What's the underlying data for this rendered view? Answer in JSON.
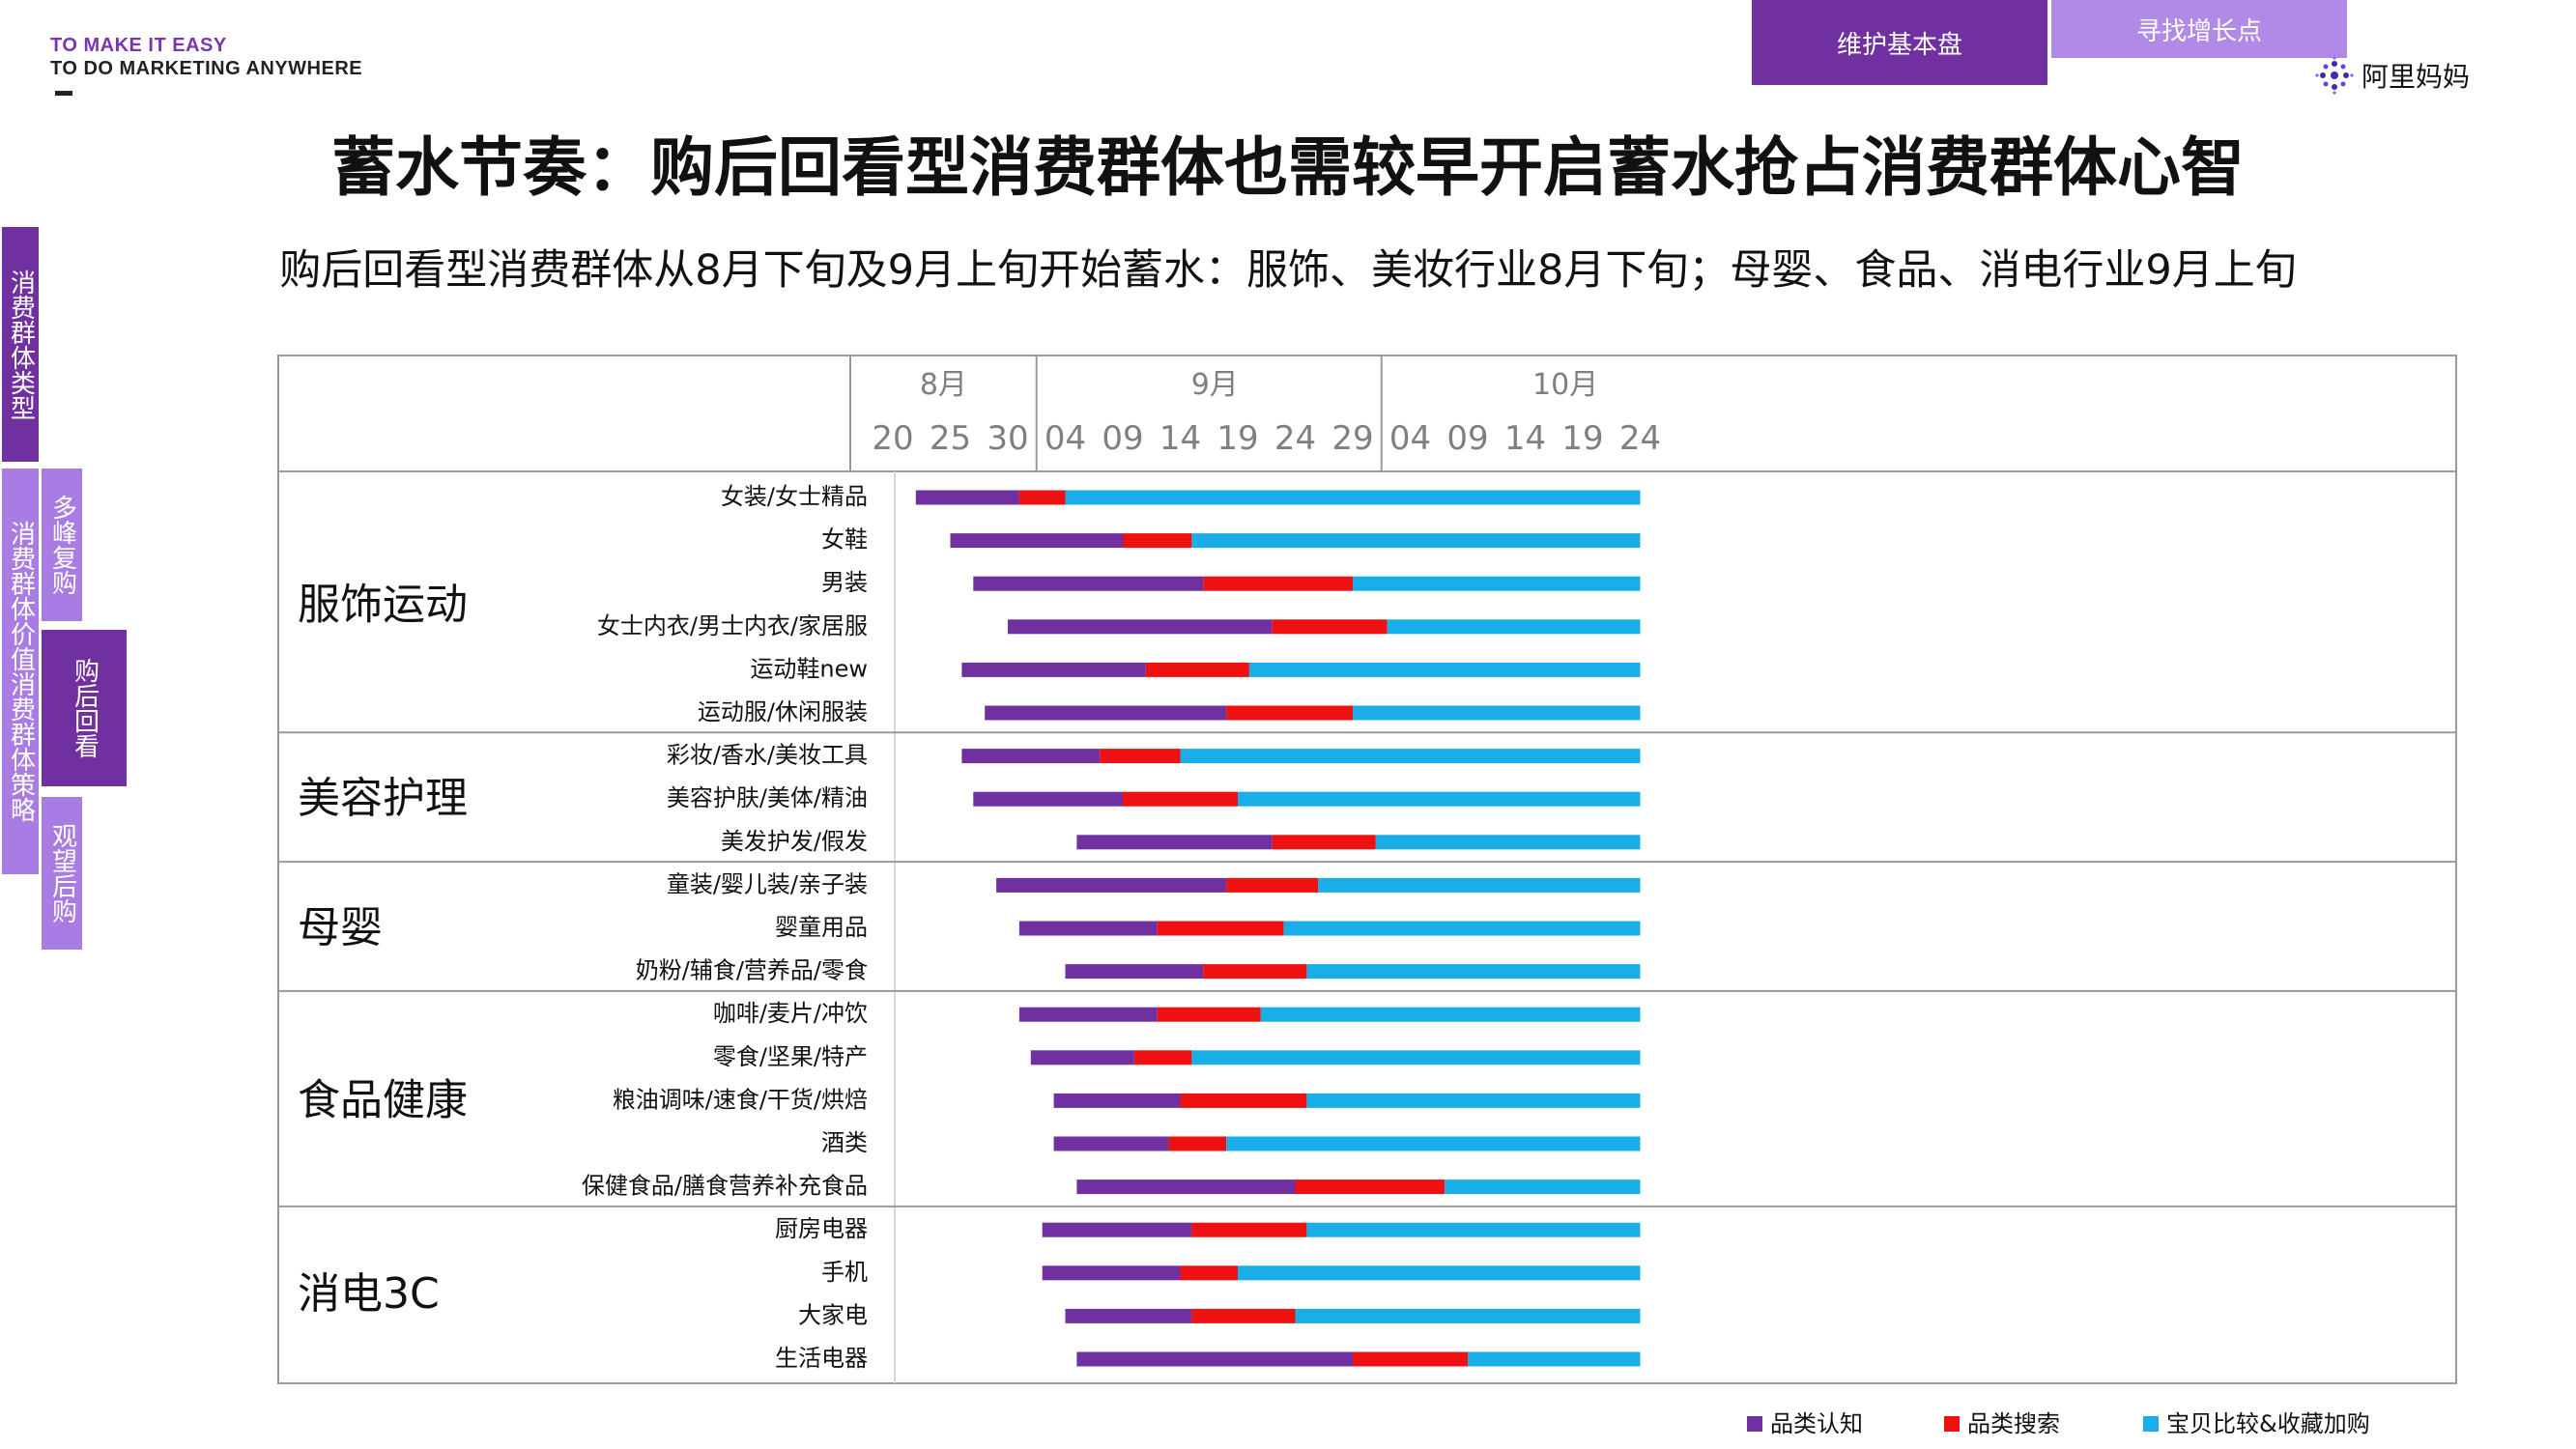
{
  "brand": {
    "line1": "TO MAKE IT EASY",
    "line2": "TO DO MARKETING ANYWHERE"
  },
  "tabs": [
    {
      "label": "维护基本盘",
      "active": true
    },
    {
      "label": "寻找增长点",
      "active": false
    }
  ],
  "logo": {
    "text": "阿里妈妈",
    "icon": "dots-logo-icon"
  },
  "page_title": "蓄水节奏：购后回看型消费群体也需较早开启蓄水抢占消费群体心智",
  "subtitle": "购后回看型消费群体从8月下旬及9月上旬开始蓄水：服饰、美妆行业8月下旬；母婴、食品、消电行业9月上旬",
  "side_nav": {
    "type_label": "消费群体类型",
    "strategy_label": "消费群体价值消费群体策略",
    "multi_peak": "多峰复购",
    "post_purchase": "购后回看",
    "wait_buy": "观望后购"
  },
  "colors": {
    "awareness": "#7030a0",
    "search": "#ee1111",
    "compare": "#1aaee8",
    "active_tab": "#7030a0",
    "inactive_tab": "#b18ae8"
  },
  "chart_data": {
    "type": "gantt",
    "months": [
      "8月",
      "9月",
      "10月"
    ],
    "ticks": [
      {
        "label": "20",
        "day": 0
      },
      {
        "label": "25",
        "day": 5
      },
      {
        "label": "30",
        "day": 10
      },
      {
        "label": "04",
        "day": 15
      },
      {
        "label": "09",
        "day": 20
      },
      {
        "label": "14",
        "day": 25
      },
      {
        "label": "19",
        "day": 30
      },
      {
        "label": "24",
        "day": 35
      },
      {
        "label": "29",
        "day": 40
      },
      {
        "label": "04",
        "day": 45
      },
      {
        "label": "09",
        "day": 50
      },
      {
        "label": "14",
        "day": 55
      },
      {
        "label": "19",
        "day": 60
      },
      {
        "label": "24",
        "day": 65
      }
    ],
    "legend": [
      {
        "name": "品类认知",
        "color": "#7030a0"
      },
      {
        "name": "品类搜索",
        "color": "#ee1111"
      },
      {
        "name": "宝贝比较&收藏加购",
        "color": "#1aaee8"
      }
    ],
    "groups": [
      {
        "name": "服饰运动",
        "rows": [
          {
            "label": "女装/女士精品",
            "start": 2,
            "search": 11,
            "compare": 15,
            "end": 65
          },
          {
            "label": "女鞋",
            "start": 5,
            "search": 20,
            "compare": 26,
            "end": 65
          },
          {
            "label": "男装",
            "start": 7,
            "search": 27,
            "compare": 40,
            "end": 65
          },
          {
            "label": "女士内衣/男士内衣/家居服",
            "start": 10,
            "search": 33,
            "compare": 43,
            "end": 65
          },
          {
            "label": "运动鞋new",
            "start": 6,
            "search": 22,
            "compare": 31,
            "end": 65
          },
          {
            "label": "运动服/休闲服装",
            "start": 8,
            "search": 29,
            "compare": 40,
            "end": 65
          }
        ]
      },
      {
        "name": "美容护理",
        "rows": [
          {
            "label": "彩妆/香水/美妆工具",
            "start": 6,
            "search": 18,
            "compare": 25,
            "end": 65
          },
          {
            "label": "美容护肤/美体/精油",
            "start": 7,
            "search": 20,
            "compare": 30,
            "end": 65
          },
          {
            "label": "美发护发/假发",
            "start": 16,
            "search": 33,
            "compare": 42,
            "end": 65
          }
        ]
      },
      {
        "name": "母婴",
        "rows": [
          {
            "label": "童装/婴儿装/亲子装",
            "start": 9,
            "search": 29,
            "compare": 37,
            "end": 65
          },
          {
            "label": "婴童用品",
            "start": 11,
            "search": 23,
            "compare": 34,
            "end": 65
          },
          {
            "label": "奶粉/辅食/营养品/零食",
            "start": 15,
            "search": 27,
            "compare": 36,
            "end": 65
          }
        ]
      },
      {
        "name": "食品健康",
        "rows": [
          {
            "label": "咖啡/麦片/冲饮",
            "start": 11,
            "search": 23,
            "compare": 32,
            "end": 65
          },
          {
            "label": "零食/坚果/特产",
            "start": 12,
            "search": 21,
            "compare": 26,
            "end": 65
          },
          {
            "label": "粮油调味/速食/干货/烘焙",
            "start": 14,
            "search": 25,
            "compare": 36,
            "end": 65
          },
          {
            "label": "酒类",
            "start": 14,
            "search": 24,
            "compare": 29,
            "end": 65
          },
          {
            "label": "保健食品/膳食营养补充食品",
            "start": 16,
            "search": 35,
            "compare": 48,
            "end": 65
          }
        ]
      },
      {
        "name": "消电3C",
        "rows": [
          {
            "label": "厨房电器",
            "start": 13,
            "search": 26,
            "compare": 36,
            "end": 65
          },
          {
            "label": "手机",
            "start": 13,
            "search": 25,
            "compare": 30,
            "end": 65
          },
          {
            "label": "大家电",
            "start": 15,
            "search": 26,
            "compare": 35,
            "end": 65
          },
          {
            "label": "生活电器",
            "start": 16,
            "search": 40,
            "compare": 50,
            "end": 65
          }
        ]
      }
    ]
  }
}
